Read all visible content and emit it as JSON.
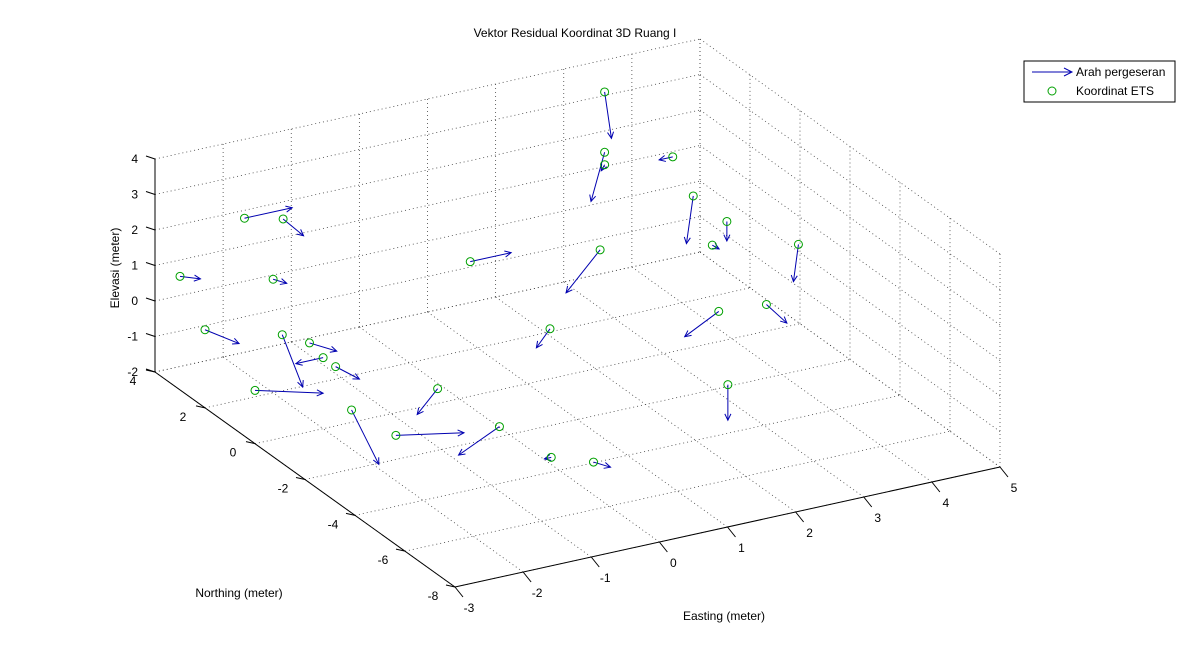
{
  "chart_data": {
    "type": "3d-vector-field",
    "title": "Vektor Residual Koordinat 3D Ruang I",
    "xlabel": "Easting (meter)",
    "ylabel": "Northing (meter)",
    "zlabel": "Elevasi (meter)",
    "xlim": [
      -3,
      5
    ],
    "ylim": [
      -8,
      4
    ],
    "zlim": [
      -2,
      4
    ],
    "x_ticks": [
      "-3",
      "-2",
      "-1",
      "0",
      "1",
      "2",
      "3",
      "4",
      "5"
    ],
    "y_ticks": [
      "-8",
      "-6",
      "-4",
      "-2",
      "0",
      "2",
      "4"
    ],
    "z_ticks": [
      "-2",
      "-1",
      "0",
      "1",
      "2",
      "3",
      "4"
    ],
    "grid": true,
    "legend_position": "top-right",
    "legend": [
      {
        "label": "Arah pergeseran",
        "marker": "arrow",
        "color": "#0000b0"
      },
      {
        "label": "Koordinat ETS",
        "marker": "circle",
        "color": "#00a000"
      }
    ],
    "series": [
      {
        "name": "Koordinat ETS",
        "marker_color": "#00a000",
        "arrow_color": "#0000b0",
        "points": [
          {
            "x": 3.6,
            "y": 4.0,
            "z": 3.1,
            "dx": 0.1,
            "dy": 0.0,
            "dz": -1.35
          },
          {
            "x": 3.6,
            "y": 4.0,
            "z": 1.4,
            "dx": -0.2,
            "dy": 0.0,
            "dz": -1.3
          },
          {
            "x": 3.6,
            "y": 4.0,
            "z": 1.05,
            "dx": -0.05,
            "dy": 0.0,
            "dz": -0.15
          },
          {
            "x": 4.6,
            "y": 4.0,
            "z": 0.85,
            "dx": -0.2,
            "dy": 0.0,
            "dz": 0.0
          },
          {
            "x": 3.8,
            "y": 1.0,
            "z": 1.6,
            "dx": -0.1,
            "dy": 0.0,
            "dz": -1.3
          },
          {
            "x": 4.0,
            "y": 0.2,
            "z": 1.2,
            "dx": 0.0,
            "dy": 0.0,
            "dz": -0.55
          },
          {
            "x": 4.5,
            "y": -1.3,
            "z": 1.1,
            "dx": 0.0,
            "dy": 0.2,
            "dz": -1.15
          },
          {
            "x": 4.3,
            "y": 1.6,
            "z": -0.3,
            "dx": 0.1,
            "dy": 0.0,
            "dz": -0.15
          },
          {
            "x": 2.8,
            "y": 2.0,
            "z": 0.0,
            "dx": -0.5,
            "dy": 0.0,
            "dz": -1.0
          },
          {
            "x": 3.0,
            "y": -2.2,
            "z": 0.3,
            "dx": -0.5,
            "dy": 0.0,
            "dz": -0.5
          },
          {
            "x": 3.7,
            "y": -2.2,
            "z": 0.2,
            "dx": 0.3,
            "dy": 0.0,
            "dz": -0.65
          },
          {
            "x": 2.4,
            "y": -4.2,
            "z": -0.5,
            "dx": 0.0,
            "dy": 0.0,
            "dz": -1.0
          },
          {
            "x": 1.0,
            "y": -0.9,
            "z": 0.0,
            "dx": -0.2,
            "dy": 0.0,
            "dz": -0.45
          },
          {
            "x": 0.6,
            "y": 1.2,
            "z": 1.0,
            "dx": 0.6,
            "dy": 0.0,
            "dz": 0.0
          },
          {
            "x": -2.0,
            "y": 1.6,
            "z": 3.1,
            "dx": 0.3,
            "dy": 0.0,
            "dz": -0.6
          },
          {
            "x": -2.2,
            "y": 2.6,
            "z": 2.7,
            "dx": 0.7,
            "dy": 0.0,
            "dz": 0.0
          },
          {
            "x": -2.0,
            "y": 2.0,
            "z": 1.2,
            "dx": 0.2,
            "dy": 0.0,
            "dz": -0.2
          },
          {
            "x": -2.2,
            "y": 0.0,
            "z": 0.5,
            "dx": 0.4,
            "dy": 0.0,
            "dz": -0.4
          },
          {
            "x": -3.0,
            "y": 3.0,
            "z": 1.2,
            "dx": 0.3,
            "dy": 0.0,
            "dz": -0.2
          },
          {
            "x": -3.0,
            "y": 2.0,
            "z": 0.2,
            "dx": 0.5,
            "dy": 0.0,
            "dz": -0.6
          },
          {
            "x": -3.0,
            "y": 0.0,
            "z": -0.5,
            "dx": 1.0,
            "dy": 0.0,
            "dz": -0.5
          },
          {
            "x": -2.6,
            "y": 0.0,
            "z": 0.9,
            "dx": 0.3,
            "dy": 0.0,
            "dz": -1.6
          },
          {
            "x": -2.0,
            "y": 0.0,
            "z": 0.0,
            "dx": -0.4,
            "dy": 0.0,
            "dz": 0.0
          },
          {
            "x": -2.0,
            "y": -0.5,
            "z": 0.0,
            "dx": 0.35,
            "dy": 0.0,
            "dz": -0.5
          },
          {
            "x": -1.2,
            "y": -2.4,
            "z": 0.0,
            "dx": -0.3,
            "dy": 0.0,
            "dz": -0.6
          },
          {
            "x": -2.5,
            "y": -2.5,
            "z": 0.0,
            "dx": 0.4,
            "dy": 0.0,
            "dz": -1.7
          },
          {
            "x": -2.4,
            "y": -4.0,
            "z": 0.0,
            "dx": 1.0,
            "dy": 0.0,
            "dz": -0.35
          },
          {
            "x": -1.1,
            "y": -4.6,
            "z": 0.0,
            "dx": -0.6,
            "dy": 0.0,
            "dz": -0.55
          },
          {
            "x": -1.0,
            "y": -6.4,
            "z": 0.0,
            "dx": -0.1,
            "dy": 0.0,
            "dz": 0.0
          },
          {
            "x": -0.6,
            "y": -7.0,
            "z": 0.0,
            "dx": 0.25,
            "dy": 0.0,
            "dz": -0.25
          }
        ]
      }
    ]
  }
}
